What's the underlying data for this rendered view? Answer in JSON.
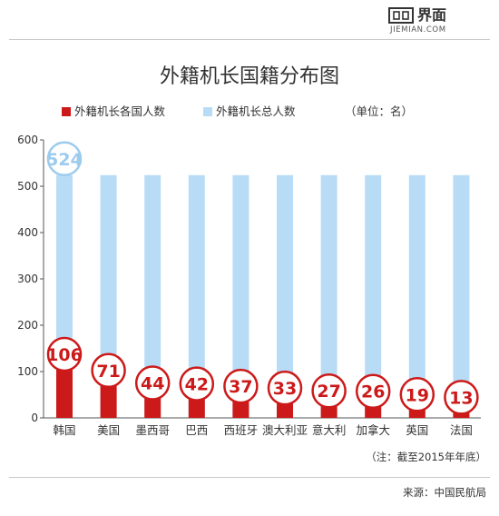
{
  "brand": {
    "name": "界面",
    "domain": "JIEMIAN.COM"
  },
  "note": "（注：截至2015年年底）",
  "source": "来源：中国民航局",
  "unit_label": "（单位：名）",
  "colors": {
    "foreign": "#cc1a1a",
    "total": "#b9dcf6",
    "bubble_border": "#cc1a1a",
    "total_bubble_border": "#9ccbee",
    "total_bubble_text": "#9ccbee"
  },
  "chart_data": {
    "type": "bar",
    "title": "外籍机长国籍分布图",
    "categories": [
      "韩国",
      "美国",
      "墨西哥",
      "巴西",
      "西班牙",
      "澳大利亚",
      "意大利",
      "加拿大",
      "英国",
      "法国"
    ],
    "series": [
      {
        "name": "外籍机长各国人数",
        "values": [
          106,
          71,
          44,
          42,
          37,
          33,
          27,
          26,
          19,
          13
        ]
      },
      {
        "name": "外籍机长总人数",
        "values": [
          524,
          524,
          524,
          524,
          524,
          524,
          524,
          524,
          524,
          524
        ]
      }
    ],
    "total_label": "524",
    "ylim": [
      0,
      600
    ],
    "yticks": [
      0,
      100,
      200,
      300,
      400,
      500,
      600
    ],
    "grid": false,
    "legend": "top"
  }
}
